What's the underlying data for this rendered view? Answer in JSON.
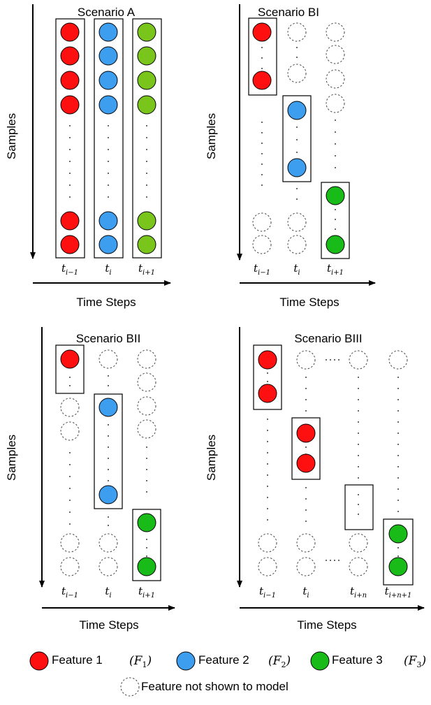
{
  "colors": {
    "feature1": "#ff1010",
    "feature2": "#3d9ef0",
    "feature3_a": "#7ac51c",
    "feature3": "#19bb19",
    "hidden_stroke": "#444444",
    "box_stroke": "#000000"
  },
  "panels": [
    {
      "id": "scenario-a",
      "title": "Scenario A",
      "y_axis_label": "Samples",
      "x_axis_label": "Time Steps",
      "ticks": [
        {
          "base": "t",
          "sub": "i−1"
        },
        {
          "base": "t",
          "sub": "i"
        },
        {
          "base": "t",
          "sub": "i+1"
        }
      ]
    },
    {
      "id": "scenario-bi",
      "title": "Scenario BI",
      "y_axis_label": "Samples",
      "x_axis_label": "Time Steps",
      "ticks": [
        {
          "base": "t",
          "sub": "i−1"
        },
        {
          "base": "t",
          "sub": "i"
        },
        {
          "base": "t",
          "sub": "i+1"
        }
      ]
    },
    {
      "id": "scenario-bii",
      "title": "Scenario BII",
      "y_axis_label": "Samples",
      "x_axis_label": "Time Steps",
      "ticks": [
        {
          "base": "t",
          "sub": "i−1"
        },
        {
          "base": "t",
          "sub": "i"
        },
        {
          "base": "t",
          "sub": "i+1"
        }
      ]
    },
    {
      "id": "scenario-biii",
      "title": "Scenario BIII",
      "y_axis_label": "Samples",
      "x_axis_label": "Time Steps",
      "ticks": [
        {
          "base": "t",
          "sub": "i−1"
        },
        {
          "base": "t",
          "sub": "i"
        },
        {
          "base": "t",
          "sub": "i+n"
        },
        {
          "base": "t",
          "sub": "i+n+1"
        }
      ]
    }
  ],
  "legend": {
    "items": [
      {
        "label": "Feature 1",
        "symbol_base": "F",
        "symbol_sub": "1",
        "color_key": "feature1"
      },
      {
        "label": "Feature 2",
        "symbol_base": "F",
        "symbol_sub": "2",
        "color_key": "feature2"
      },
      {
        "label": "Feature 3",
        "symbol_base": "F",
        "symbol_sub": "3",
        "color_key": "feature3"
      }
    ],
    "hidden_label": "Feature not shown to model"
  }
}
